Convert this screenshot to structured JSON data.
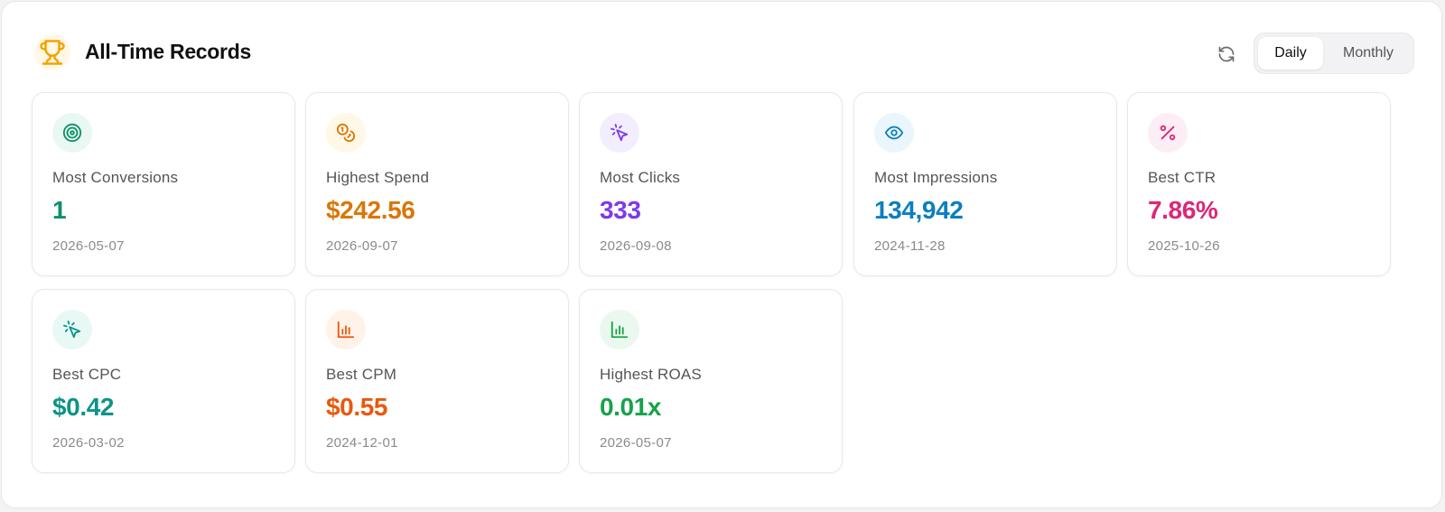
{
  "header": {
    "title": "All-Time Records",
    "icon": "trophy-icon",
    "refresh_icon": "refresh-icon",
    "toggle": {
      "options": [
        "Daily",
        "Monthly"
      ],
      "selected": "Daily"
    }
  },
  "colors": {
    "trophy": "#f5a300",
    "conversions": "#0f8f6c",
    "spend": "#d97706",
    "clicks": "#7c3aed",
    "impressions": "#0b7fbf",
    "ctr": "#db2777",
    "cpc": "#0d9488",
    "cpm": "#ea580c",
    "roas": "#16a34a"
  },
  "cards": [
    {
      "label": "Most Conversions",
      "value": "1",
      "date": "2026-05-07",
      "icon": "target-icon"
    },
    {
      "label": "Highest Spend",
      "value": "$242.56",
      "date": "2026-09-07",
      "icon": "coins-icon"
    },
    {
      "label": "Most Clicks",
      "value": "333",
      "date": "2026-09-08",
      "icon": "cursor-click-icon"
    },
    {
      "label": "Most Impressions",
      "value": "134,942",
      "date": "2024-11-28",
      "icon": "eye-icon"
    },
    {
      "label": "Best CTR",
      "value": "7.86%",
      "date": "2025-10-26",
      "icon": "percent-icon"
    },
    {
      "label": "Best CPC",
      "value": "$0.42",
      "date": "2026-03-02",
      "icon": "cursor-click-icon"
    },
    {
      "label": "Best CPM",
      "value": "$0.55",
      "date": "2024-12-01",
      "icon": "bar-chart-icon"
    },
    {
      "label": "Highest ROAS",
      "value": "0.01x",
      "date": "2026-05-07",
      "icon": "bar-chart-icon"
    }
  ]
}
